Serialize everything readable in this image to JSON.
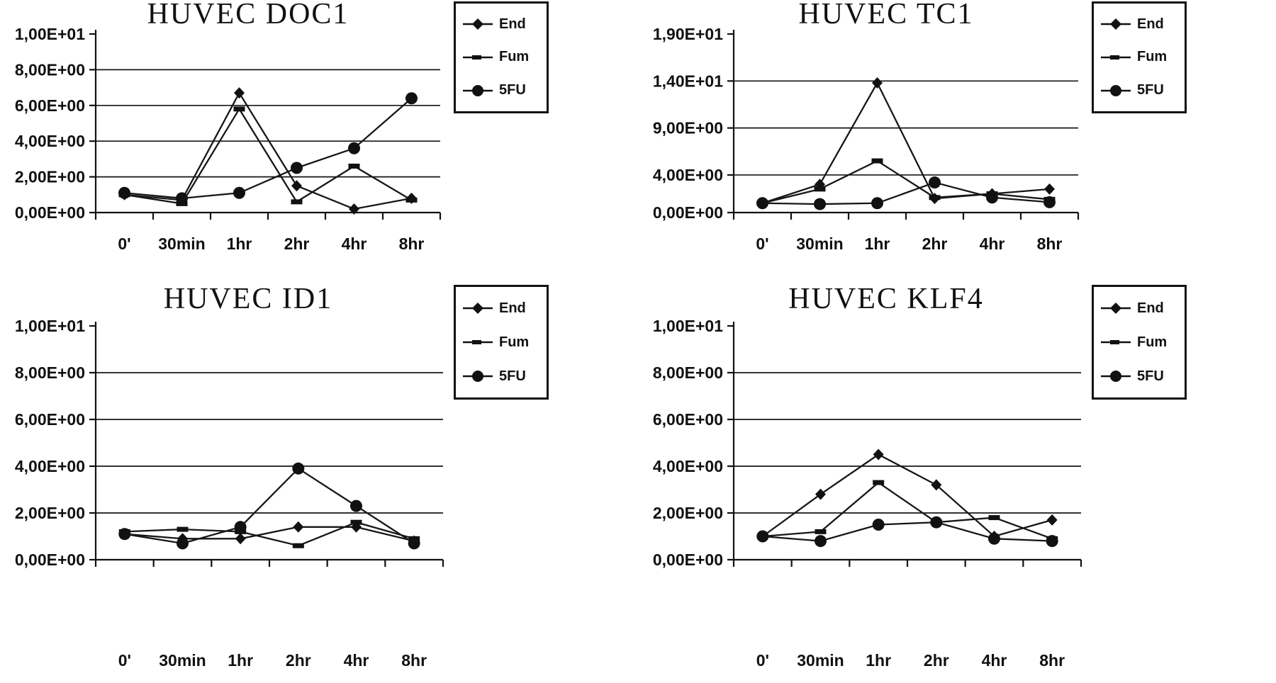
{
  "legend": {
    "entries": [
      "End",
      "Fum",
      "5FU"
    ]
  },
  "colors": {
    "ink": "#111111",
    "background": "#ffffff"
  },
  "chart_data": [
    {
      "type": "line",
      "title": "HUVEC DOC1",
      "categories": [
        "0'",
        "30min",
        "1hr",
        "2hr",
        "4hr",
        "8hr"
      ],
      "ylim": [
        0,
        10
      ],
      "yticks": [
        0,
        2,
        4,
        6,
        8,
        10
      ],
      "ytick_labels": [
        "0,00E+00",
        "2,00E+00",
        "4,00E+00",
        "6,00E+00",
        "8,00E+00",
        "1,00E+01"
      ],
      "grid": true,
      "legend_position": "top-right",
      "series": [
        {
          "name": "End",
          "marker": "diamond",
          "values": [
            1.0,
            0.7,
            6.7,
            1.5,
            0.2,
            0.8
          ]
        },
        {
          "name": "Fum",
          "marker": "dash",
          "values": [
            1.0,
            0.5,
            5.8,
            0.6,
            2.6,
            0.7
          ]
        },
        {
          "name": "5FU",
          "marker": "circle",
          "values": [
            1.1,
            0.8,
            1.1,
            2.5,
            3.6,
            6.4
          ]
        }
      ]
    },
    {
      "type": "line",
      "title": "HUVEC TC1",
      "categories": [
        "0'",
        "30min",
        "1hr",
        "2hr",
        "4hr",
        "8hr"
      ],
      "ylim": [
        0,
        19
      ],
      "yticks": [
        0,
        4,
        9,
        14,
        19
      ],
      "ytick_labels": [
        "0,00E+00",
        "4,00E+00",
        "9,00E+00",
        "1,40E+01",
        "1,90E+01"
      ],
      "grid": true,
      "legend_position": "top-right",
      "series": [
        {
          "name": "End",
          "marker": "diamond",
          "values": [
            1.0,
            3.0,
            13.8,
            1.5,
            2.0,
            2.5
          ]
        },
        {
          "name": "Fum",
          "marker": "dash",
          "values": [
            1.0,
            2.5,
            5.5,
            1.6,
            2.0,
            1.4
          ]
        },
        {
          "name": "5FU",
          "marker": "circle",
          "values": [
            1.0,
            0.9,
            1.0,
            3.2,
            1.6,
            1.1
          ]
        }
      ]
    },
    {
      "type": "line",
      "title": "HUVEC ID1",
      "categories": [
        "0'",
        "30min",
        "1hr",
        "2hr",
        "4hr",
        "8hr"
      ],
      "ylim": [
        0,
        10
      ],
      "yticks": [
        0,
        2,
        4,
        6,
        8,
        10
      ],
      "ytick_labels": [
        "0,00E+00",
        "2,00E+00",
        "4,00E+00",
        "6,00E+00",
        "8,00E+00",
        "1,00E+01"
      ],
      "grid": true,
      "legend_position": "top-right",
      "series": [
        {
          "name": "End",
          "marker": "diamond",
          "values": [
            1.1,
            0.9,
            0.9,
            1.4,
            1.4,
            0.8
          ]
        },
        {
          "name": "Fum",
          "marker": "dash",
          "values": [
            1.2,
            1.3,
            1.2,
            0.6,
            1.6,
            0.9
          ]
        },
        {
          "name": "5FU",
          "marker": "circle",
          "values": [
            1.1,
            0.7,
            1.4,
            3.9,
            2.3,
            0.7
          ]
        }
      ]
    },
    {
      "type": "line",
      "title": "HUVEC KLF4",
      "categories": [
        "0'",
        "30min",
        "1hr",
        "2hr",
        "4hr",
        "8hr"
      ],
      "ylim": [
        0,
        10
      ],
      "yticks": [
        0,
        2,
        4,
        6,
        8,
        10
      ],
      "ytick_labels": [
        "0,00E+00",
        "2,00E+00",
        "4,00E+00",
        "6,00E+00",
        "8,00E+00",
        "1,00E+01"
      ],
      "grid": true,
      "legend_position": "top-right",
      "series": [
        {
          "name": "End",
          "marker": "diamond",
          "values": [
            1.0,
            2.8,
            4.5,
            3.2,
            1.0,
            1.7
          ]
        },
        {
          "name": "Fum",
          "marker": "dash",
          "values": [
            1.0,
            1.2,
            3.3,
            1.6,
            1.8,
            0.9
          ]
        },
        {
          "name": "5FU",
          "marker": "circle",
          "values": [
            1.0,
            0.8,
            1.5,
            1.6,
            0.9,
            0.8
          ]
        }
      ]
    }
  ]
}
